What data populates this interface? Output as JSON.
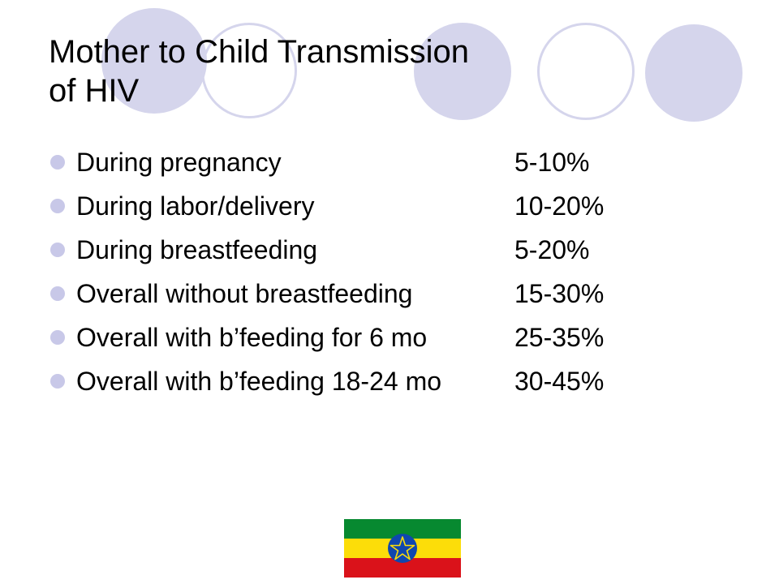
{
  "slide": {
    "title_line1": "Mother to Child Transmission",
    "title_line2": "of HIV",
    "items": [
      {
        "label": "During pregnancy",
        "value": "5-10%"
      },
      {
        "label": "During labor/delivery",
        "value": "10-20%"
      },
      {
        "label": "During breastfeeding",
        "value": "5-20%"
      },
      {
        "label": "Overall without breastfeeding",
        "value": "15-30%"
      },
      {
        "label": "Overall with b’feeding for 6 mo",
        "value": "25-35%"
      },
      {
        "label": "Overall with b’feeding 18-24 mo",
        "value": "30-45%"
      }
    ]
  },
  "colors": {
    "circle": "#d5d5ec",
    "bullet": "#c8c8e8",
    "flag_green": "#078930",
    "flag_yellow": "#fcdd09",
    "flag_red": "#da121a",
    "flag_emblem": "#0f47af"
  },
  "flag_icon": "ethiopia-flag-icon"
}
